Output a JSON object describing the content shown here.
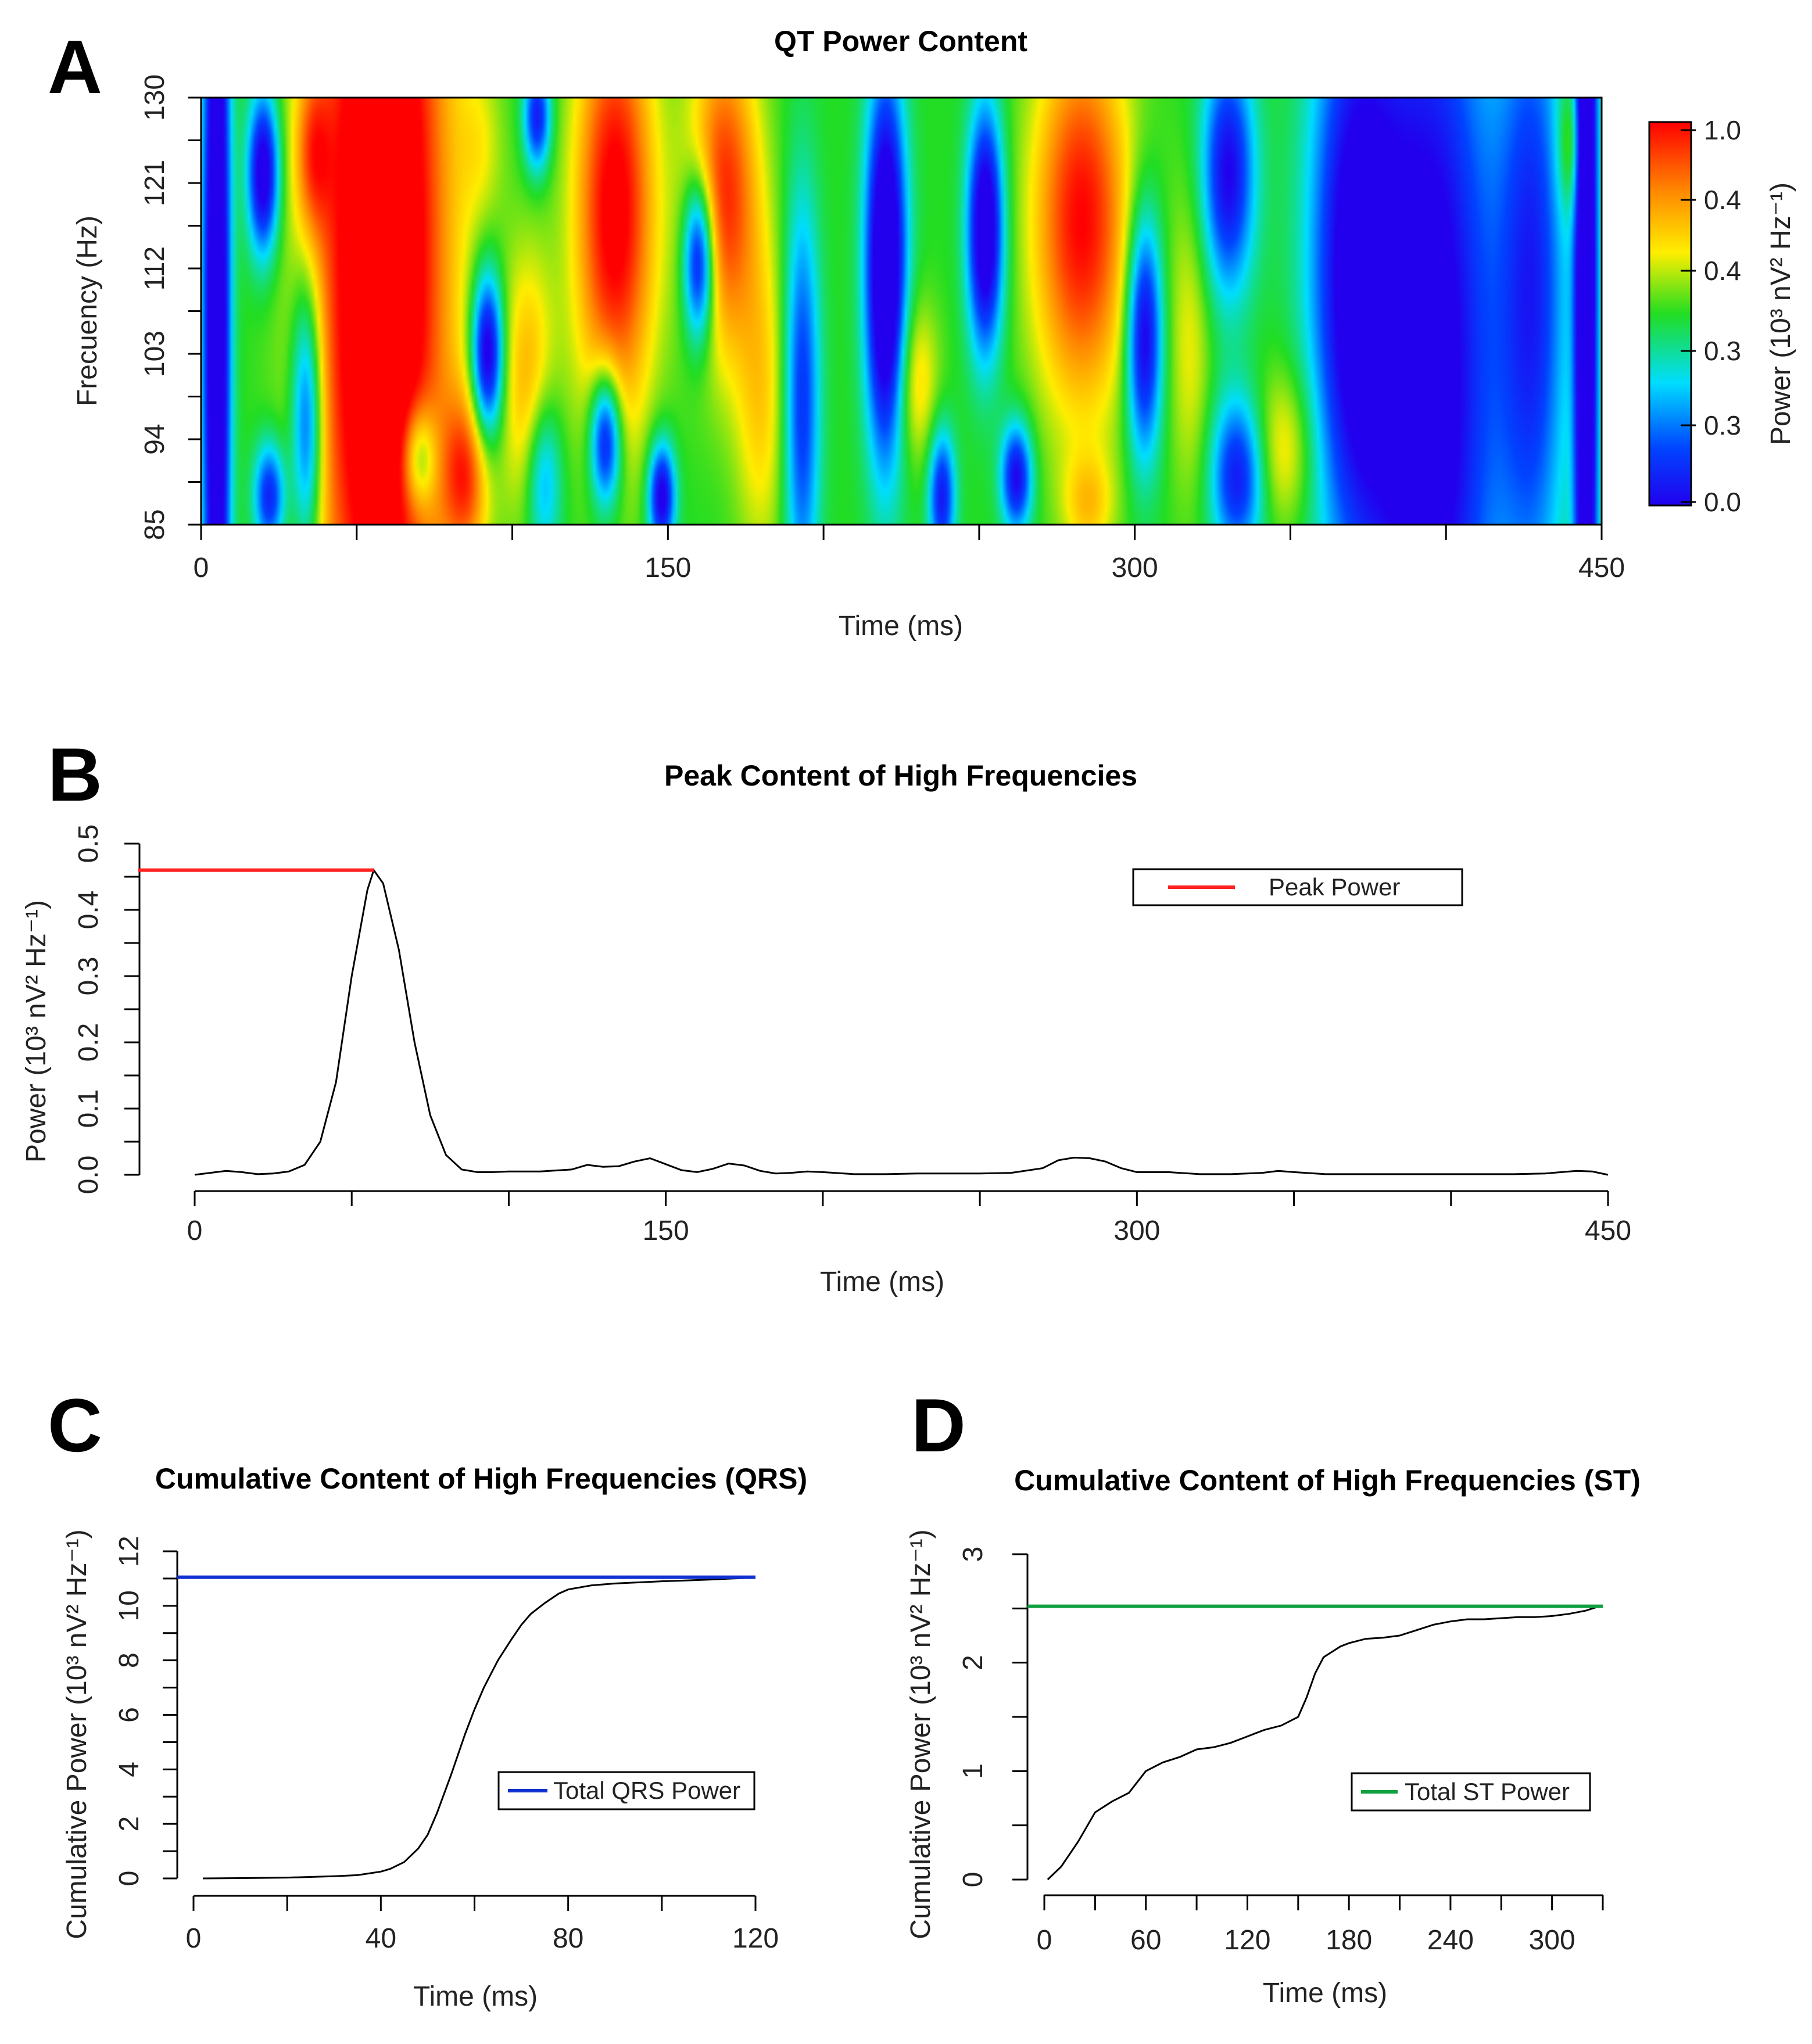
{
  "colors": {
    "heat": [
      "#2200ee",
      "#0044ff",
      "#00ddff",
      "#22dd22",
      "#ffee00",
      "#ff8800",
      "#ff0000"
    ],
    "peak_line": "#ff2020",
    "qrs_line": "#1030d0",
    "st_line": "#10a040",
    "curve": "#000000"
  },
  "chart_data": [
    {
      "id": "A",
      "panel_letter": "A",
      "type": "heatmap",
      "title": "QT Power Content",
      "xlabel": "Time (ms)",
      "ylabel": "Frecuency (Hz)",
      "xlim": [
        0,
        450
      ],
      "ylim": [
        85,
        130
      ],
      "x_ticks": [
        0,
        150,
        300,
        450
      ],
      "y_ticks": [
        85,
        94,
        103,
        112,
        121,
        130
      ],
      "colorbar": {
        "label": "Power (10³ nV² Hz⁻¹)",
        "tick_labels": [
          "1.0",
          "0.4",
          "0.4",
          "0.3",
          "0.3",
          "0.0"
        ]
      },
      "blobs": [
        {
          "t": 5,
          "f": 107,
          "st": 3,
          "sf": 40,
          "v": -0.75
        },
        {
          "t": 20,
          "f": 122,
          "st": 3.5,
          "sf": 6,
          "v": -0.6
        },
        {
          "t": 22,
          "f": 88,
          "st": 3.5,
          "sf": 4,
          "v": -0.45
        },
        {
          "t": 34,
          "f": 96,
          "st": 3.5,
          "sf": 10,
          "v": -0.45
        },
        {
          "t": 36,
          "f": 124,
          "st": 4,
          "sf": 6,
          "v": 0.25
        },
        {
          "t": 58,
          "f": 113,
          "st": 15,
          "sf": 40,
          "v": 0.75
        },
        {
          "t": 70,
          "f": 92,
          "st": 4,
          "sf": 4,
          "v": -0.35
        },
        {
          "t": 90,
          "f": 125,
          "st": 5,
          "sf": 6,
          "v": 0.1
        },
        {
          "t": 92,
          "f": 103,
          "st": 3.5,
          "sf": 6,
          "v": -0.6
        },
        {
          "t": 85,
          "f": 90,
          "st": 5,
          "sf": 6,
          "v": 0.35
        },
        {
          "t": 108,
          "f": 128,
          "st": 3,
          "sf": 4,
          "v": -0.45
        },
        {
          "t": 110,
          "f": 90,
          "st": 4,
          "sf": 6,
          "v": -0.3
        },
        {
          "t": 105,
          "f": 100,
          "st": 6,
          "sf": 10,
          "v": 0.25
        },
        {
          "t": 133,
          "f": 118,
          "st": 9,
          "sf": 16,
          "v": 0.55
        },
        {
          "t": 130,
          "f": 94,
          "st": 3.5,
          "sf": 5,
          "v": -0.55
        },
        {
          "t": 148,
          "f": 88,
          "st": 3,
          "sf": 4,
          "v": -0.55
        },
        {
          "t": 160,
          "f": 113,
          "st": 3.5,
          "sf": 6,
          "v": -0.6
        },
        {
          "t": 168,
          "f": 120,
          "st": 8,
          "sf": 12,
          "v": 0.45
        },
        {
          "t": 180,
          "f": 98,
          "st": 6,
          "sf": 12,
          "v": 0.2
        },
        {
          "t": 193,
          "f": 98,
          "st": 4,
          "sf": 15,
          "v": -0.4
        },
        {
          "t": 220,
          "f": 112,
          "st": 4.5,
          "sf": 14,
          "v": -0.75
        },
        {
          "t": 230,
          "f": 100,
          "st": 5,
          "sf": 6,
          "v": 0.2
        },
        {
          "t": 238,
          "f": 88,
          "st": 3,
          "sf": 5,
          "v": -0.45
        },
        {
          "t": 252,
          "f": 116,
          "st": 4,
          "sf": 9,
          "v": -0.65
        },
        {
          "t": 262,
          "f": 90,
          "st": 3.5,
          "sf": 4,
          "v": -0.5
        },
        {
          "t": 283,
          "f": 117,
          "st": 11,
          "sf": 14,
          "v": 0.5
        },
        {
          "t": 285,
          "f": 87,
          "st": 6,
          "sf": 4,
          "v": 0.2
        },
        {
          "t": 303,
          "f": 105,
          "st": 4,
          "sf": 9,
          "v": -0.55
        },
        {
          "t": 318,
          "f": 104,
          "st": 5,
          "sf": 12,
          "v": 0.15
        },
        {
          "t": 330,
          "f": 122,
          "st": 6,
          "sf": 9,
          "v": -0.5
        },
        {
          "t": 333,
          "f": 90,
          "st": 6,
          "sf": 6,
          "v": -0.45
        },
        {
          "t": 348,
          "f": 93,
          "st": 7,
          "sf": 6,
          "v": 0.2
        },
        {
          "t": 370,
          "f": 112,
          "st": 10,
          "sf": 22,
          "v": -0.5
        },
        {
          "t": 395,
          "f": 100,
          "st": 15,
          "sf": 35,
          "v": -0.6
        },
        {
          "t": 428,
          "f": 110,
          "st": 8,
          "sf": 25,
          "v": -0.4
        },
        {
          "t": 445,
          "f": 112,
          "st": 2.5,
          "sf": 60,
          "v": -0.8
        },
        {
          "t": 440,
          "f": 125,
          "st": 3,
          "sf": 5,
          "v": 0.2
        }
      ]
    },
    {
      "id": "B",
      "panel_letter": "B",
      "type": "line",
      "title": "Peak Content of High Frequencies",
      "xlabel": "Time (ms)",
      "ylabel": "Power (10³ nV² Hz⁻¹)",
      "xlim": [
        0,
        450
      ],
      "ylim": [
        0,
        0.5
      ],
      "x_ticks": [
        0,
        150,
        300,
        450
      ],
      "y_ticks": [
        0.0,
        0.1,
        0.2,
        0.3,
        0.4,
        0.5
      ],
      "y_tick_labels": [
        "0.0",
        "0.1",
        "0.2",
        "0.3",
        "0.4",
        "0.5"
      ],
      "legend": [
        "Peak Power"
      ],
      "peak": {
        "value": 0.46,
        "time": 57
      },
      "x": [
        0,
        5,
        10,
        15,
        20,
        25,
        30,
        35,
        40,
        45,
        50,
        55,
        57,
        60,
        65,
        70,
        75,
        80,
        85,
        90,
        95,
        100,
        110,
        120,
        125,
        130,
        135,
        140,
        145,
        150,
        155,
        160,
        165,
        170,
        175,
        180,
        185,
        190,
        195,
        200,
        210,
        220,
        230,
        240,
        250,
        260,
        270,
        275,
        280,
        285,
        290,
        295,
        300,
        310,
        320,
        330,
        340,
        345,
        350,
        360,
        370,
        380,
        390,
        400,
        410,
        420,
        430,
        440,
        445,
        450
      ],
      "values": [
        0.0,
        0.003,
        0.006,
        0.004,
        0.001,
        0.002,
        0.005,
        0.015,
        0.05,
        0.14,
        0.3,
        0.43,
        0.46,
        0.44,
        0.34,
        0.2,
        0.09,
        0.03,
        0.008,
        0.004,
        0.004,
        0.005,
        0.005,
        0.008,
        0.015,
        0.012,
        0.013,
        0.02,
        0.025,
        0.016,
        0.007,
        0.004,
        0.009,
        0.017,
        0.014,
        0.006,
        0.002,
        0.003,
        0.005,
        0.004,
        0.001,
        0.001,
        0.002,
        0.002,
        0.002,
        0.003,
        0.01,
        0.022,
        0.026,
        0.025,
        0.02,
        0.01,
        0.004,
        0.004,
        0.001,
        0.001,
        0.003,
        0.006,
        0.004,
        0.001,
        0.001,
        0.001,
        0.001,
        0.001,
        0.001,
        0.001,
        0.002,
        0.006,
        0.005,
        0.0
      ]
    },
    {
      "id": "C",
      "panel_letter": "C",
      "type": "line",
      "title": "Cumulative Content of High Frequencies (QRS)",
      "xlabel": "Time (ms)",
      "ylabel": "Cumulative Power (10³ nV² Hz⁻¹)",
      "xlim": [
        0,
        120
      ],
      "ylim": [
        0,
        12
      ],
      "x_ticks": [
        0,
        40,
        80,
        120
      ],
      "x_minor_ticks": [
        20,
        60,
        100
      ],
      "y_ticks": [
        0,
        2,
        4,
        6,
        8,
        10,
        12
      ],
      "legend": [
        "Total QRS Power"
      ],
      "total": 11.05,
      "x": [
        2,
        10,
        20,
        30,
        35,
        40,
        42,
        45,
        48,
        50,
        52,
        55,
        58,
        60,
        62,
        65,
        68,
        70,
        72,
        75,
        78,
        80,
        85,
        90,
        95,
        100,
        105,
        110,
        115,
        120
      ],
      "values": [
        0.0,
        0.01,
        0.03,
        0.08,
        0.12,
        0.25,
        0.35,
        0.6,
        1.1,
        1.6,
        2.4,
        3.8,
        5.3,
        6.2,
        7.0,
        8.0,
        8.8,
        9.3,
        9.7,
        10.1,
        10.45,
        10.6,
        10.75,
        10.82,
        10.86,
        10.9,
        10.93,
        10.96,
        11.0,
        11.03
      ]
    },
    {
      "id": "D",
      "panel_letter": "D",
      "type": "line",
      "title": "Cumulative Content of High Frequencies (ST)",
      "xlabel": "Time (ms)",
      "ylabel": "Cumulative Power (10³ nV² Hz⁻¹)",
      "xlim": [
        0,
        330
      ],
      "ylim": [
        0,
        3
      ],
      "x_ticks": [
        0,
        60,
        120,
        180,
        240,
        300
      ],
      "x_minor_ticks": [
        30,
        90,
        150,
        210,
        270,
        330
      ],
      "y_ticks": [
        0,
        1,
        2,
        3
      ],
      "legend": [
        "Total ST Power"
      ],
      "total": 2.52,
      "x": [
        2,
        10,
        20,
        30,
        40,
        50,
        60,
        70,
        80,
        90,
        100,
        110,
        120,
        130,
        140,
        150,
        155,
        160,
        165,
        170,
        175,
        180,
        190,
        200,
        210,
        220,
        230,
        240,
        250,
        260,
        270,
        280,
        290,
        300,
        310,
        320,
        328
      ],
      "values": [
        0.0,
        0.12,
        0.35,
        0.62,
        0.72,
        0.8,
        1.0,
        1.08,
        1.13,
        1.2,
        1.22,
        1.26,
        1.32,
        1.38,
        1.42,
        1.5,
        1.68,
        1.9,
        2.05,
        2.1,
        2.15,
        2.18,
        2.22,
        2.23,
        2.25,
        2.3,
        2.35,
        2.38,
        2.4,
        2.4,
        2.41,
        2.42,
        2.42,
        2.43,
        2.45,
        2.48,
        2.52
      ]
    }
  ]
}
